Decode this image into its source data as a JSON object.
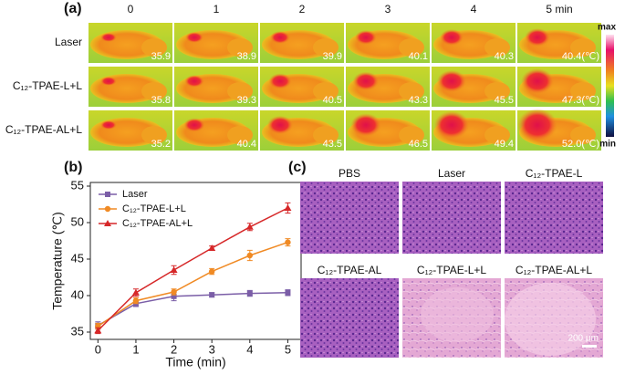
{
  "panel_a": {
    "label": "(a)",
    "columns": [
      "0",
      "1",
      "2",
      "3",
      "4",
      "5 min"
    ],
    "rows": [
      {
        "label": "Laser",
        "temps": [
          "35.9",
          "38.9",
          "39.9",
          "40.1",
          "40.3",
          "40.4(℃)"
        ]
      },
      {
        "label": "C₁₂-TPAE-L+L",
        "temps": [
          "35.8",
          "39.3",
          "40.5",
          "43.3",
          "45.5",
          "47.3(℃)"
        ]
      },
      {
        "label": "C₁₂-TPAE-AL+L",
        "temps": [
          "35.2",
          "40.4",
          "43.5",
          "46.5",
          "49.4",
          "52.0(℃)"
        ]
      }
    ],
    "colorbar": {
      "max": "max",
      "min": "min"
    }
  },
  "chart_data": {
    "type": "line",
    "panel_label": "(b)",
    "x_label": "Time (min)",
    "y_label": "Temperature (℃)",
    "x": [
      0,
      1,
      2,
      3,
      4,
      5
    ],
    "series": [
      {
        "name": "Laser",
        "color": "#7b5ea7",
        "marker": "square",
        "values": [
          35.9,
          38.9,
          39.9,
          40.1,
          40.3,
          40.4
        ],
        "errors": [
          0.5,
          0.4,
          0.6,
          0.3,
          0.4,
          0.4
        ]
      },
      {
        "name": "C₁₂-TPAE-L+L",
        "color": "#f08a24",
        "marker": "circle",
        "values": [
          35.8,
          39.3,
          40.5,
          43.3,
          45.5,
          47.3
        ],
        "errors": [
          0.4,
          0.4,
          0.4,
          0.4,
          0.7,
          0.5
        ]
      },
      {
        "name": "C₁₂-TPAE-AL+L",
        "color": "#d62728",
        "marker": "triangle",
        "values": [
          35.2,
          40.4,
          43.5,
          46.5,
          49.4,
          52.0
        ],
        "errors": [
          0.4,
          0.5,
          0.6,
          0.3,
          0.5,
          0.7
        ]
      }
    ],
    "xlim": [
      -0.2,
      5.35
    ],
    "ylim": [
      34,
      55.5
    ],
    "xticks": [
      0,
      1,
      2,
      3,
      4,
      5
    ],
    "yticks": [
      35,
      40,
      45,
      50,
      55
    ]
  },
  "panel_c": {
    "label": "(c)",
    "images": [
      "PBS",
      "Laser",
      "C₁₂-TPAE-L",
      "C₁₂-TPAE-AL",
      "C₁₂-TPAE-L+L",
      "C₁₂-TPAE-AL+L"
    ],
    "scale_bar": "200 μm"
  }
}
